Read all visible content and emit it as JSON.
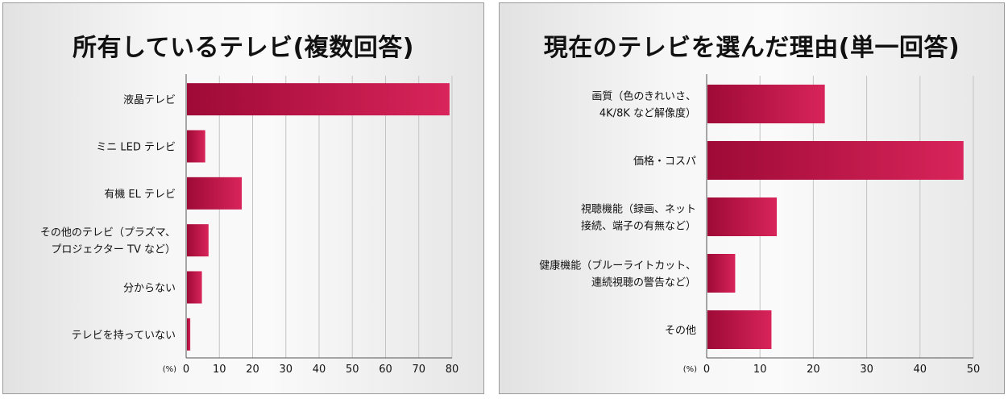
{
  "charts": [
    {
      "title": "所有しているテレビ(複数回答)",
      "unit": "(%)",
      "chart_data": {
        "type": "bar",
        "orientation": "horizontal",
        "categories": [
          [
            "液晶テレビ"
          ],
          [
            "ミニ LED テレビ"
          ],
          [
            "有機 EL テレビ"
          ],
          [
            "その他のテレビ（プラズマ、",
            "プロジェクター TV など）"
          ],
          [
            "分からない"
          ],
          [
            "テレビを持っていない"
          ]
        ],
        "values": [
          79,
          5.5,
          16.5,
          6.5,
          4.5,
          1
        ],
        "xlim": [
          0,
          80
        ],
        "ticks": [
          0,
          10,
          20,
          30,
          40,
          50,
          60,
          70,
          80
        ],
        "tick_labels": [
          "0",
          "10",
          "20",
          "30",
          "40",
          "50",
          "60",
          "70",
          "80"
        ],
        "grid": true,
        "bar_color_start": "#9e0a36",
        "bar_color_end": "#d8245a"
      }
    },
    {
      "title": "現在のテレビを選んだ理由(単一回答)",
      "unit": "(%)",
      "chart_data": {
        "type": "bar",
        "orientation": "horizontal",
        "categories": [
          [
            "画質（色のきれいさ、",
            "4K/8K など解像度）"
          ],
          [
            "価格・コスパ"
          ],
          [
            "視聴機能（録画、ネット",
            "接続、端子の有無など）"
          ],
          [
            "健康機能（ブルーライトカット、",
            "連続視聴の警告など）"
          ],
          [
            "その他"
          ]
        ],
        "values": [
          22,
          48,
          13,
          5.2,
          12
        ],
        "xlim": [
          0,
          50
        ],
        "ticks": [
          0,
          10,
          20,
          30,
          40,
          50
        ],
        "tick_labels": [
          "0",
          "10",
          "20",
          "30",
          "40",
          "50"
        ],
        "grid": true,
        "bar_color_start": "#9e0a36",
        "bar_color_end": "#d8245a"
      }
    }
  ]
}
